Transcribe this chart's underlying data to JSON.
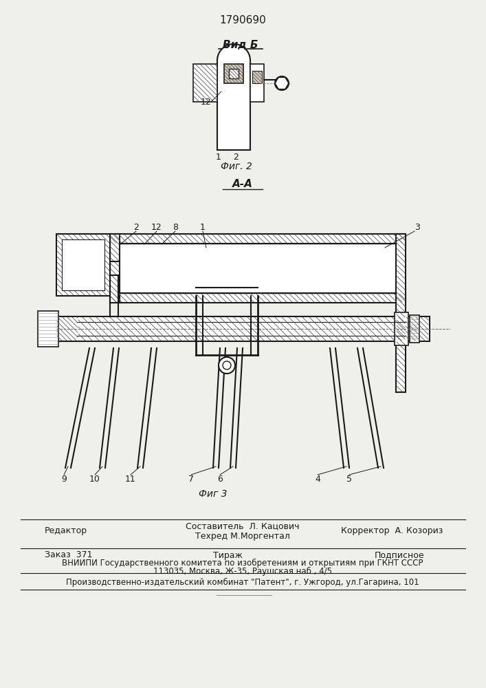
{
  "patent_number": "1790690",
  "view_label": "Вид Б",
  "fig2_label": "Фиг. 2",
  "section_label": "А-А",
  "fig3_label": "Фиг 3",
  "footer_line1_left": "Редактор",
  "footer_line1_center1": "Составитель  Л. Кацович",
  "footer_line1_center2": "Техред М.Моргентал",
  "footer_line1_right": "Корректор  А. Козориз",
  "footer_line2_left": "Заказ  371",
  "footer_line2_center": "Тираж",
  "footer_line2_right": "Подписное",
  "footer_line3": "ВНИИПИ Государственного комитета по изобретениям и открытиям при ГКНТ СССР",
  "footer_line4": "113035, Москва, Ж-35, Раушская наб., 4/5",
  "footer_line5": "Производственно-издательский комбинат \"Патент\", г. Ужгород, ул.Гагарина, 101",
  "bg_color": "#f0f0eb",
  "line_color": "#1a1a1a",
  "hatch_color": "#555555"
}
